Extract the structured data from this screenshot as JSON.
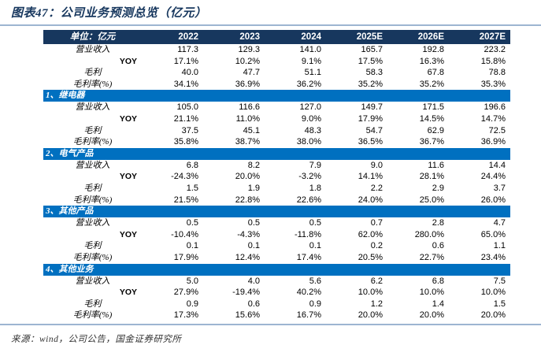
{
  "title": "图表47：公司业务预测总览（亿元）",
  "source": "来源：wind，公司公告，国金证券研究所",
  "colors": {
    "header_bg": "#17375E",
    "section_bg": "#0070C0",
    "rule": "#9DB5D1",
    "title_color": "#17375E"
  },
  "table": {
    "unit_header": "单位：亿元",
    "year_headers": [
      "2022",
      "2023",
      "2024",
      "2025E",
      "2026E",
      "2027E"
    ],
    "sections": [
      {
        "name": "",
        "rows": [
          {
            "label": "营业收入",
            "values": [
              "117.3",
              "129.3",
              "141.0",
              "165.7",
              "192.8",
              "223.2"
            ]
          },
          {
            "label": "YOY",
            "values": [
              "17.1%",
              "10.2%",
              "9.1%",
              "17.5%",
              "16.3%",
              "15.8%"
            ]
          },
          {
            "label": "毛利",
            "values": [
              "40.0",
              "47.7",
              "51.1",
              "58.3",
              "67.8",
              "78.8"
            ]
          },
          {
            "label": "毛利率(%)",
            "values": [
              "34.1%",
              "36.9%",
              "36.2%",
              "35.2%",
              "35.2%",
              "35.3%"
            ]
          }
        ]
      },
      {
        "name": "1、继电器",
        "rows": [
          {
            "label": "营业收入",
            "values": [
              "105.0",
              "116.6",
              "127.0",
              "149.7",
              "171.5",
              "196.6"
            ]
          },
          {
            "label": "YOY",
            "values": [
              "21.1%",
              "11.0%",
              "9.0%",
              "17.9%",
              "14.5%",
              "14.7%"
            ]
          },
          {
            "label": "毛利",
            "values": [
              "37.5",
              "45.1",
              "48.3",
              "54.7",
              "62.9",
              "72.5"
            ]
          },
          {
            "label": "毛利率(%)",
            "values": [
              "35.8%",
              "38.7%",
              "38.0%",
              "36.5%",
              "36.7%",
              "36.9%"
            ]
          }
        ]
      },
      {
        "name": "2、电气产品",
        "rows": [
          {
            "label": "营业收入",
            "values": [
              "6.8",
              "8.2",
              "7.9",
              "9.0",
              "11.6",
              "14.4"
            ]
          },
          {
            "label": "YOY",
            "values": [
              "-24.3%",
              "20.0%",
              "-3.2%",
              "14.1%",
              "28.1%",
              "24.4%"
            ]
          },
          {
            "label": "毛利",
            "values": [
              "1.5",
              "1.9",
              "1.8",
              "2.2",
              "2.9",
              "3.7"
            ]
          },
          {
            "label": "毛利率(%)",
            "values": [
              "21.5%",
              "22.8%",
              "22.6%",
              "24.0%",
              "25.0%",
              "26.0%"
            ]
          }
        ]
      },
      {
        "name": "3、其他产品",
        "rows": [
          {
            "label": "营业收入",
            "values": [
              "0.5",
              "0.5",
              "0.5",
              "0.7",
              "2.8",
              "4.7"
            ]
          },
          {
            "label": "YOY",
            "values": [
              "-10.4%",
              "-4.3%",
              "-11.8%",
              "62.0%",
              "280.0%",
              "65.0%"
            ]
          },
          {
            "label": "毛利",
            "values": [
              "0.1",
              "0.1",
              "0.1",
              "0.2",
              "0.6",
              "1.1"
            ]
          },
          {
            "label": "毛利率(%)",
            "values": [
              "17.9%",
              "12.4%",
              "17.4%",
              "20.5%",
              "22.7%",
              "23.4%"
            ]
          }
        ]
      },
      {
        "name": "4、其他业务",
        "rows": [
          {
            "label": "营业收入",
            "values": [
              "5.0",
              "4.0",
              "5.6",
              "6.2",
              "6.8",
              "7.5"
            ]
          },
          {
            "label": "YOY",
            "values": [
              "27.9%",
              "-19.4%",
              "40.2%",
              "10.0%",
              "10.0%",
              "10.0%"
            ]
          },
          {
            "label": "毛利",
            "values": [
              "0.9",
              "0.6",
              "0.9",
              "1.2",
              "1.4",
              "1.5"
            ]
          },
          {
            "label": "毛利率(%)",
            "values": [
              "17.3%",
              "15.6%",
              "16.7%",
              "20.0%",
              "20.0%",
              "20.0%"
            ]
          }
        ]
      }
    ]
  }
}
